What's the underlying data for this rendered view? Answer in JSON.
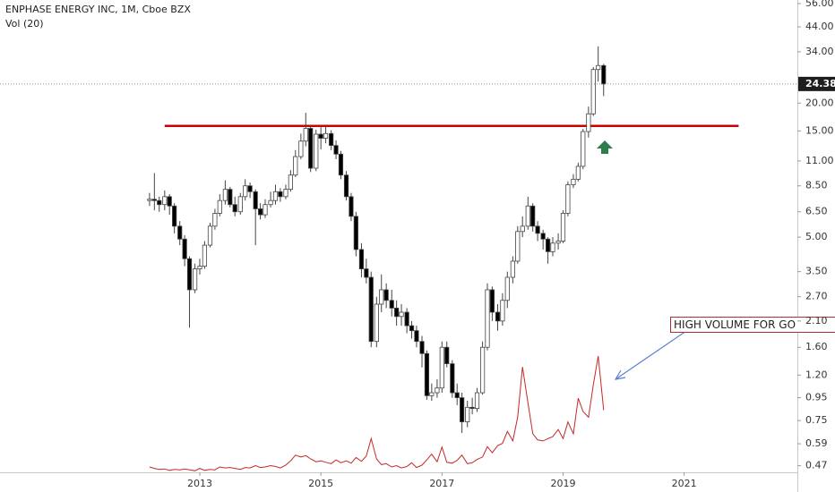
{
  "chart_data": {
    "type": "candlestick",
    "title": "ENPHASE ENERGY INC, 1M, Cboe BZX",
    "log_scale": true,
    "xlim": [
      2009.7,
      2022.87
    ],
    "xticks": [
      2013,
      2015,
      2017,
      2019,
      2021
    ],
    "ylim": [
      0.431,
      58.1
    ],
    "yticks": [
      {
        "value": 56,
        "label": "56.00"
      },
      {
        "value": 44,
        "label": "44.00"
      },
      {
        "value": 34,
        "label": "34.00"
      },
      {
        "value": 20,
        "label": "20.00"
      },
      {
        "value": 15,
        "label": "15.00"
      },
      {
        "value": 11,
        "label": "11.00"
      },
      {
        "value": 8.5,
        "label": "8.50"
      },
      {
        "value": 6.5,
        "label": "6.50"
      },
      {
        "value": 5,
        "label": "5.00"
      },
      {
        "value": 3.5,
        "label": "3.50"
      },
      {
        "value": 2.7,
        "label": "2.70"
      },
      {
        "value": 2.1,
        "label": "2.10"
      },
      {
        "value": 1.6,
        "label": "1.60"
      },
      {
        "value": 1.2,
        "label": "1.20"
      },
      {
        "value": 0.95,
        "label": "0.95"
      },
      {
        "value": 0.75,
        "label": "0.75"
      },
      {
        "value": 0.59,
        "label": "0.59"
      },
      {
        "value": 0.47,
        "label": "0.47"
      }
    ],
    "up_color": "#ffffff",
    "down_color": "#000000",
    "x": [
      2012.17,
      2012.25,
      2012.33,
      2012.42,
      2012.5,
      2012.58,
      2012.67,
      2012.75,
      2012.83,
      2012.92,
      2013,
      2013.08,
      2013.17,
      2013.25,
      2013.33,
      2013.42,
      2013.5,
      2013.58,
      2013.67,
      2013.75,
      2013.83,
      2013.92,
      2014,
      2014.08,
      2014.17,
      2014.25,
      2014.33,
      2014.42,
      2014.5,
      2014.58,
      2014.67,
      2014.75,
      2014.83,
      2014.92,
      2015,
      2015.08,
      2015.17,
      2015.25,
      2015.33,
      2015.42,
      2015.5,
      2015.58,
      2015.67,
      2015.75,
      2015.83,
      2015.92,
      2016,
      2016.08,
      2016.17,
      2016.25,
      2016.33,
      2016.42,
      2016.5,
      2016.58,
      2016.67,
      2016.75,
      2016.83,
      2016.92,
      2017,
      2017.08,
      2017.17,
      2017.25,
      2017.33,
      2017.42,
      2017.5,
      2017.58,
      2017.67,
      2017.75,
      2017.83,
      2017.92,
      2018,
      2018.08,
      2018.17,
      2018.25,
      2018.33,
      2018.42,
      2018.5,
      2018.58,
      2018.67,
      2018.75,
      2018.83,
      2018.92,
      2019,
      2019.08,
      2019.17,
      2019.25,
      2019.33,
      2019.42,
      2019.5,
      2019.58,
      2019.67
    ],
    "open": [
      7.3,
      7.4,
      7.3,
      7.0,
      7.6,
      6.9,
      5.6,
      4.9,
      4.0,
      2.9,
      3.6,
      3.7,
      4.6,
      5.6,
      6.4,
      7.3,
      8.2,
      7.0,
      6.5,
      7.6,
      8.5,
      8.0,
      6.7,
      6.3,
      7.0,
      7.3,
      8.0,
      7.6,
      8.2,
      9.5,
      11.5,
      13.5,
      15.4,
      10.2,
      14.5,
      13.9,
      14.6,
      12.9,
      11.8,
      9.5,
      7.6,
      6.2,
      4.4,
      3.6,
      3.3,
      1.7,
      2.5,
      2.9,
      2.6,
      2.4,
      2.2,
      2.3,
      2.0,
      1.9,
      1.7,
      1.5,
      0.97,
      1.0,
      1.05,
      1.6,
      1.35,
      1.0,
      0.95,
      0.74,
      0.86,
      0.85,
      1.0,
      1.6,
      2.9,
      2.3,
      2.1,
      2.6,
      3.3,
      3.9,
      5.3,
      5.6,
      6.9,
      5.6,
      5.2,
      4.9,
      4.3,
      4.7,
      4.8,
      6.4,
      8.6,
      9.1,
      10.4,
      14.9,
      17.9,
      28.3,
      29.5
    ],
    "high": [
      7.9,
      9.7,
      7.6,
      8.1,
      7.8,
      7.1,
      5.9,
      5.1,
      4.1,
      3.8,
      4.0,
      4.8,
      5.8,
      6.7,
      7.8,
      9.0,
      8.4,
      7.6,
      7.9,
      9.1,
      8.8,
      8.2,
      7.1,
      7.4,
      8.0,
      8.6,
      8.3,
      8.6,
      10.0,
      12.3,
      14.6,
      18.1,
      15.9,
      15.2,
      15.6,
      15.8,
      15.1,
      13.6,
      12.2,
      9.9,
      7.9,
      6.5,
      4.7,
      4.0,
      3.5,
      2.7,
      3.4,
      3.1,
      2.9,
      2.6,
      2.5,
      2.4,
      2.1,
      2.0,
      1.8,
      1.55,
      1.1,
      1.15,
      1.7,
      1.7,
      1.4,
      1.1,
      1.0,
      0.92,
      0.95,
      1.05,
      1.7,
      3.1,
      3.0,
      2.5,
      2.8,
      3.5,
      4.1,
      5.6,
      6.2,
      7.6,
      7.1,
      5.9,
      5.4,
      5.0,
      5.0,
      5.2,
      6.6,
      8.9,
      9.6,
      10.8,
      15.3,
      19.3,
      29.0,
      36.0,
      30.0
    ],
    "low": [
      6.9,
      6.6,
      6.5,
      6.6,
      6.3,
      5.2,
      4.6,
      3.7,
      1.96,
      2.8,
      3.4,
      3.6,
      4.5,
      5.4,
      6.2,
      7.0,
      6.8,
      6.2,
      6.3,
      7.3,
      7.5,
      4.6,
      6.0,
      6.1,
      6.8,
      7.0,
      7.2,
      7.4,
      8.0,
      9.3,
      11.2,
      12.8,
      9.8,
      9.9,
      12.4,
      13.2,
      12.3,
      11.2,
      9.1,
      7.3,
      5.9,
      4.1,
      3.3,
      3.1,
      1.6,
      1.6,
      2.3,
      2.4,
      2.2,
      2.0,
      2.0,
      1.85,
      1.75,
      1.6,
      1.3,
      0.93,
      0.92,
      0.95,
      1.0,
      1.3,
      0.95,
      0.88,
      0.66,
      0.7,
      0.8,
      0.82,
      0.98,
      1.55,
      2.1,
      1.9,
      2.0,
      2.4,
      3.1,
      3.8,
      5.0,
      5.4,
      5.3,
      4.8,
      4.4,
      3.8,
      4.1,
      4.4,
      4.7,
      6.2,
      8.3,
      8.9,
      10.1,
      14.0,
      17.5,
      25.0,
      21.5
    ],
    "close": [
      7.4,
      7.3,
      7.0,
      7.6,
      6.9,
      5.6,
      4.9,
      4.0,
      2.9,
      3.6,
      3.7,
      4.6,
      5.6,
      6.4,
      7.3,
      8.2,
      7.0,
      6.5,
      7.6,
      8.5,
      8.0,
      6.7,
      6.3,
      7.0,
      7.3,
      8.0,
      7.6,
      8.2,
      9.5,
      11.5,
      13.5,
      15.4,
      10.2,
      14.5,
      13.9,
      14.6,
      12.9,
      11.8,
      9.5,
      7.6,
      6.2,
      4.4,
      3.6,
      3.3,
      1.7,
      2.5,
      2.9,
      2.6,
      2.4,
      2.2,
      2.3,
      2.0,
      1.9,
      1.7,
      1.5,
      0.97,
      1.0,
      1.05,
      1.6,
      1.35,
      1.0,
      0.95,
      0.74,
      0.86,
      0.85,
      1.0,
      1.6,
      2.9,
      2.3,
      2.1,
      2.6,
      3.3,
      3.9,
      5.3,
      5.6,
      6.9,
      5.6,
      5.2,
      4.9,
      4.3,
      4.7,
      4.8,
      6.4,
      8.6,
      9.1,
      10.4,
      14.9,
      17.9,
      28.3,
      29.5,
      24.38
    ],
    "volume": {
      "name": "Vol (20)",
      "color": "#c62828",
      "axis": "y2",
      "values": [
        1.5,
        1.2,
        1.0,
        1.1,
        0.8,
        1.0,
        0.9,
        1.1,
        0.9,
        0.7,
        1.2,
        0.8,
        1.0,
        0.9,
        1.5,
        1.3,
        1.4,
        1.2,
        1.0,
        1.4,
        1.3,
        1.8,
        1.4,
        1.5,
        1.8,
        1.6,
        1.3,
        1.9,
        2.8,
        4.0,
        3.6,
        3.9,
        3.2,
        2.6,
        2.8,
        2.5,
        2.2,
        3.0,
        2.4,
        2.8,
        2.3,
        3.5,
        2.7,
        3.8,
        7.5,
        3.2,
        2.0,
        2.2,
        1.5,
        1.8,
        1.3,
        1.6,
        2.4,
        1.4,
        1.9,
        3.0,
        4.2,
        2.6,
        5.7,
        2.5,
        2.3,
        2.9,
        4.0,
        2.2,
        2.4,
        3.1,
        3.6,
        5.8,
        4.5,
        6.0,
        6.5,
        9.0,
        7.0,
        12.0,
        22.6,
        15.0,
        8.5,
        7.2,
        7.0,
        7.5,
        7.9,
        9.4,
        7.5,
        11.0,
        8.5,
        16.0,
        13.2,
        12.0,
        18.9,
        24.9,
        13.5
      ]
    },
    "y2lim": [
      0,
      100
    ],
    "resistance_line": {
      "value": 15.8,
      "x": [
        2012.42,
        2021.9
      ],
      "color": "#cc0000"
    },
    "annotation": "HIGH VOLUME FOR GO"
  }
}
